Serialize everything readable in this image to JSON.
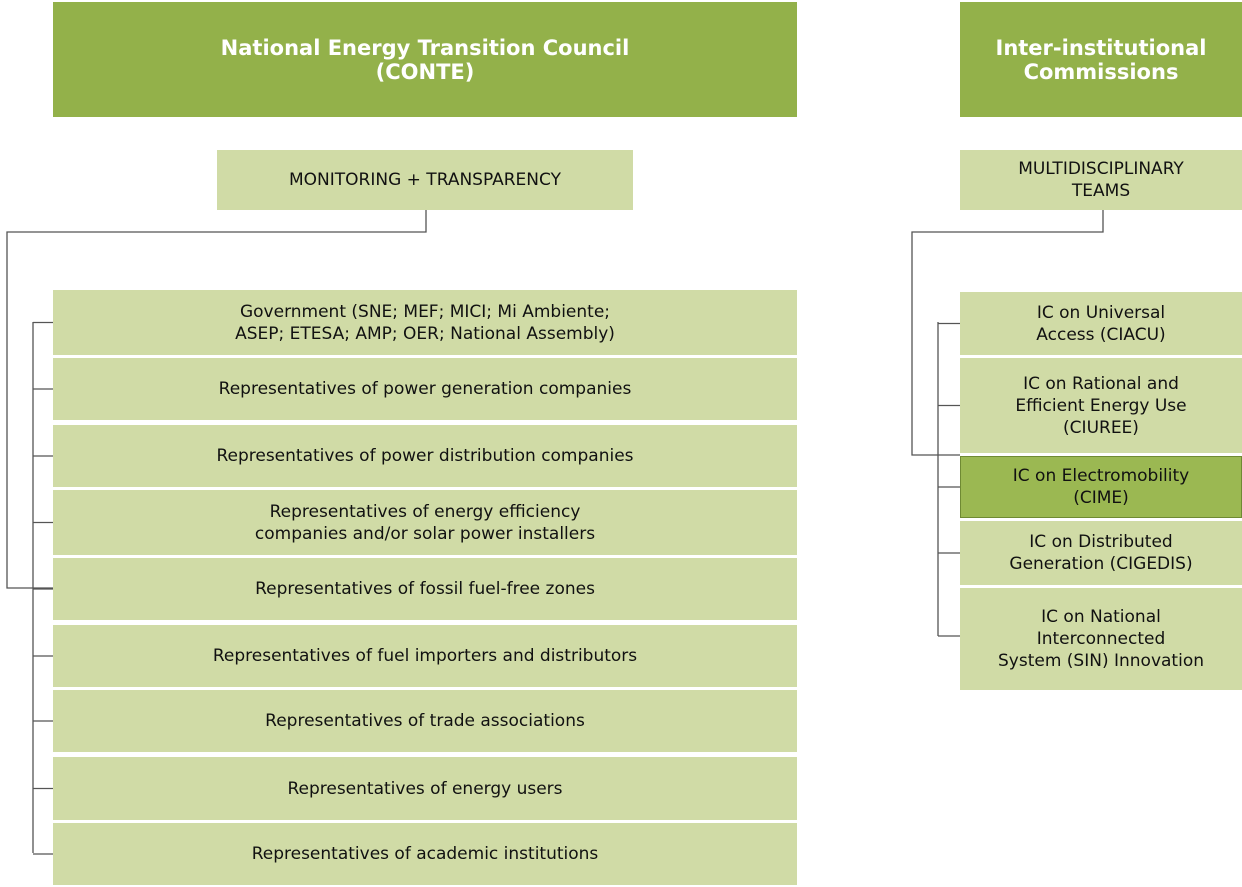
{
  "left": {
    "header": [
      "National Energy Transition Council",
      "(CONTE)"
    ],
    "sub": [
      "MONITORING + TRANSPARENCY"
    ],
    "members": [
      [
        "Government (SNE; MEF; MICI; Mi Ambiente;",
        "ASEP; ETESA; AMP; OER; National Assembly)"
      ],
      [
        "Representatives of power generation companies"
      ],
      [
        "Representatives of power distribution companies"
      ],
      [
        "Representatives of energy efficiency",
        "companies and/or solar power installers"
      ],
      [
        "Representatives of fossil fuel-free zones"
      ],
      [
        "Representatives of fuel importers and distributors"
      ],
      [
        "Representatives of trade associations"
      ],
      [
        "Representatives of energy users"
      ],
      [
        "Representatives of academic institutions"
      ]
    ]
  },
  "right": {
    "header": [
      "Inter-institutional",
      "Commissions"
    ],
    "sub": [
      "MULTIDISCIPLINARY",
      "TEAMS"
    ],
    "members": [
      [
        "IC on Universal",
        "Access (CIACU)"
      ],
      [
        "IC on Rational and",
        "Efficient Energy Use",
        "(CIUREE)"
      ],
      [
        "IC on Electromobility",
        "(CIME)"
      ],
      [
        "IC on Distributed",
        "Generation (CIGEDIS)"
      ],
      [
        "IC on National",
        "Interconnected",
        "System (SIN) Innovation"
      ]
    ]
  }
}
